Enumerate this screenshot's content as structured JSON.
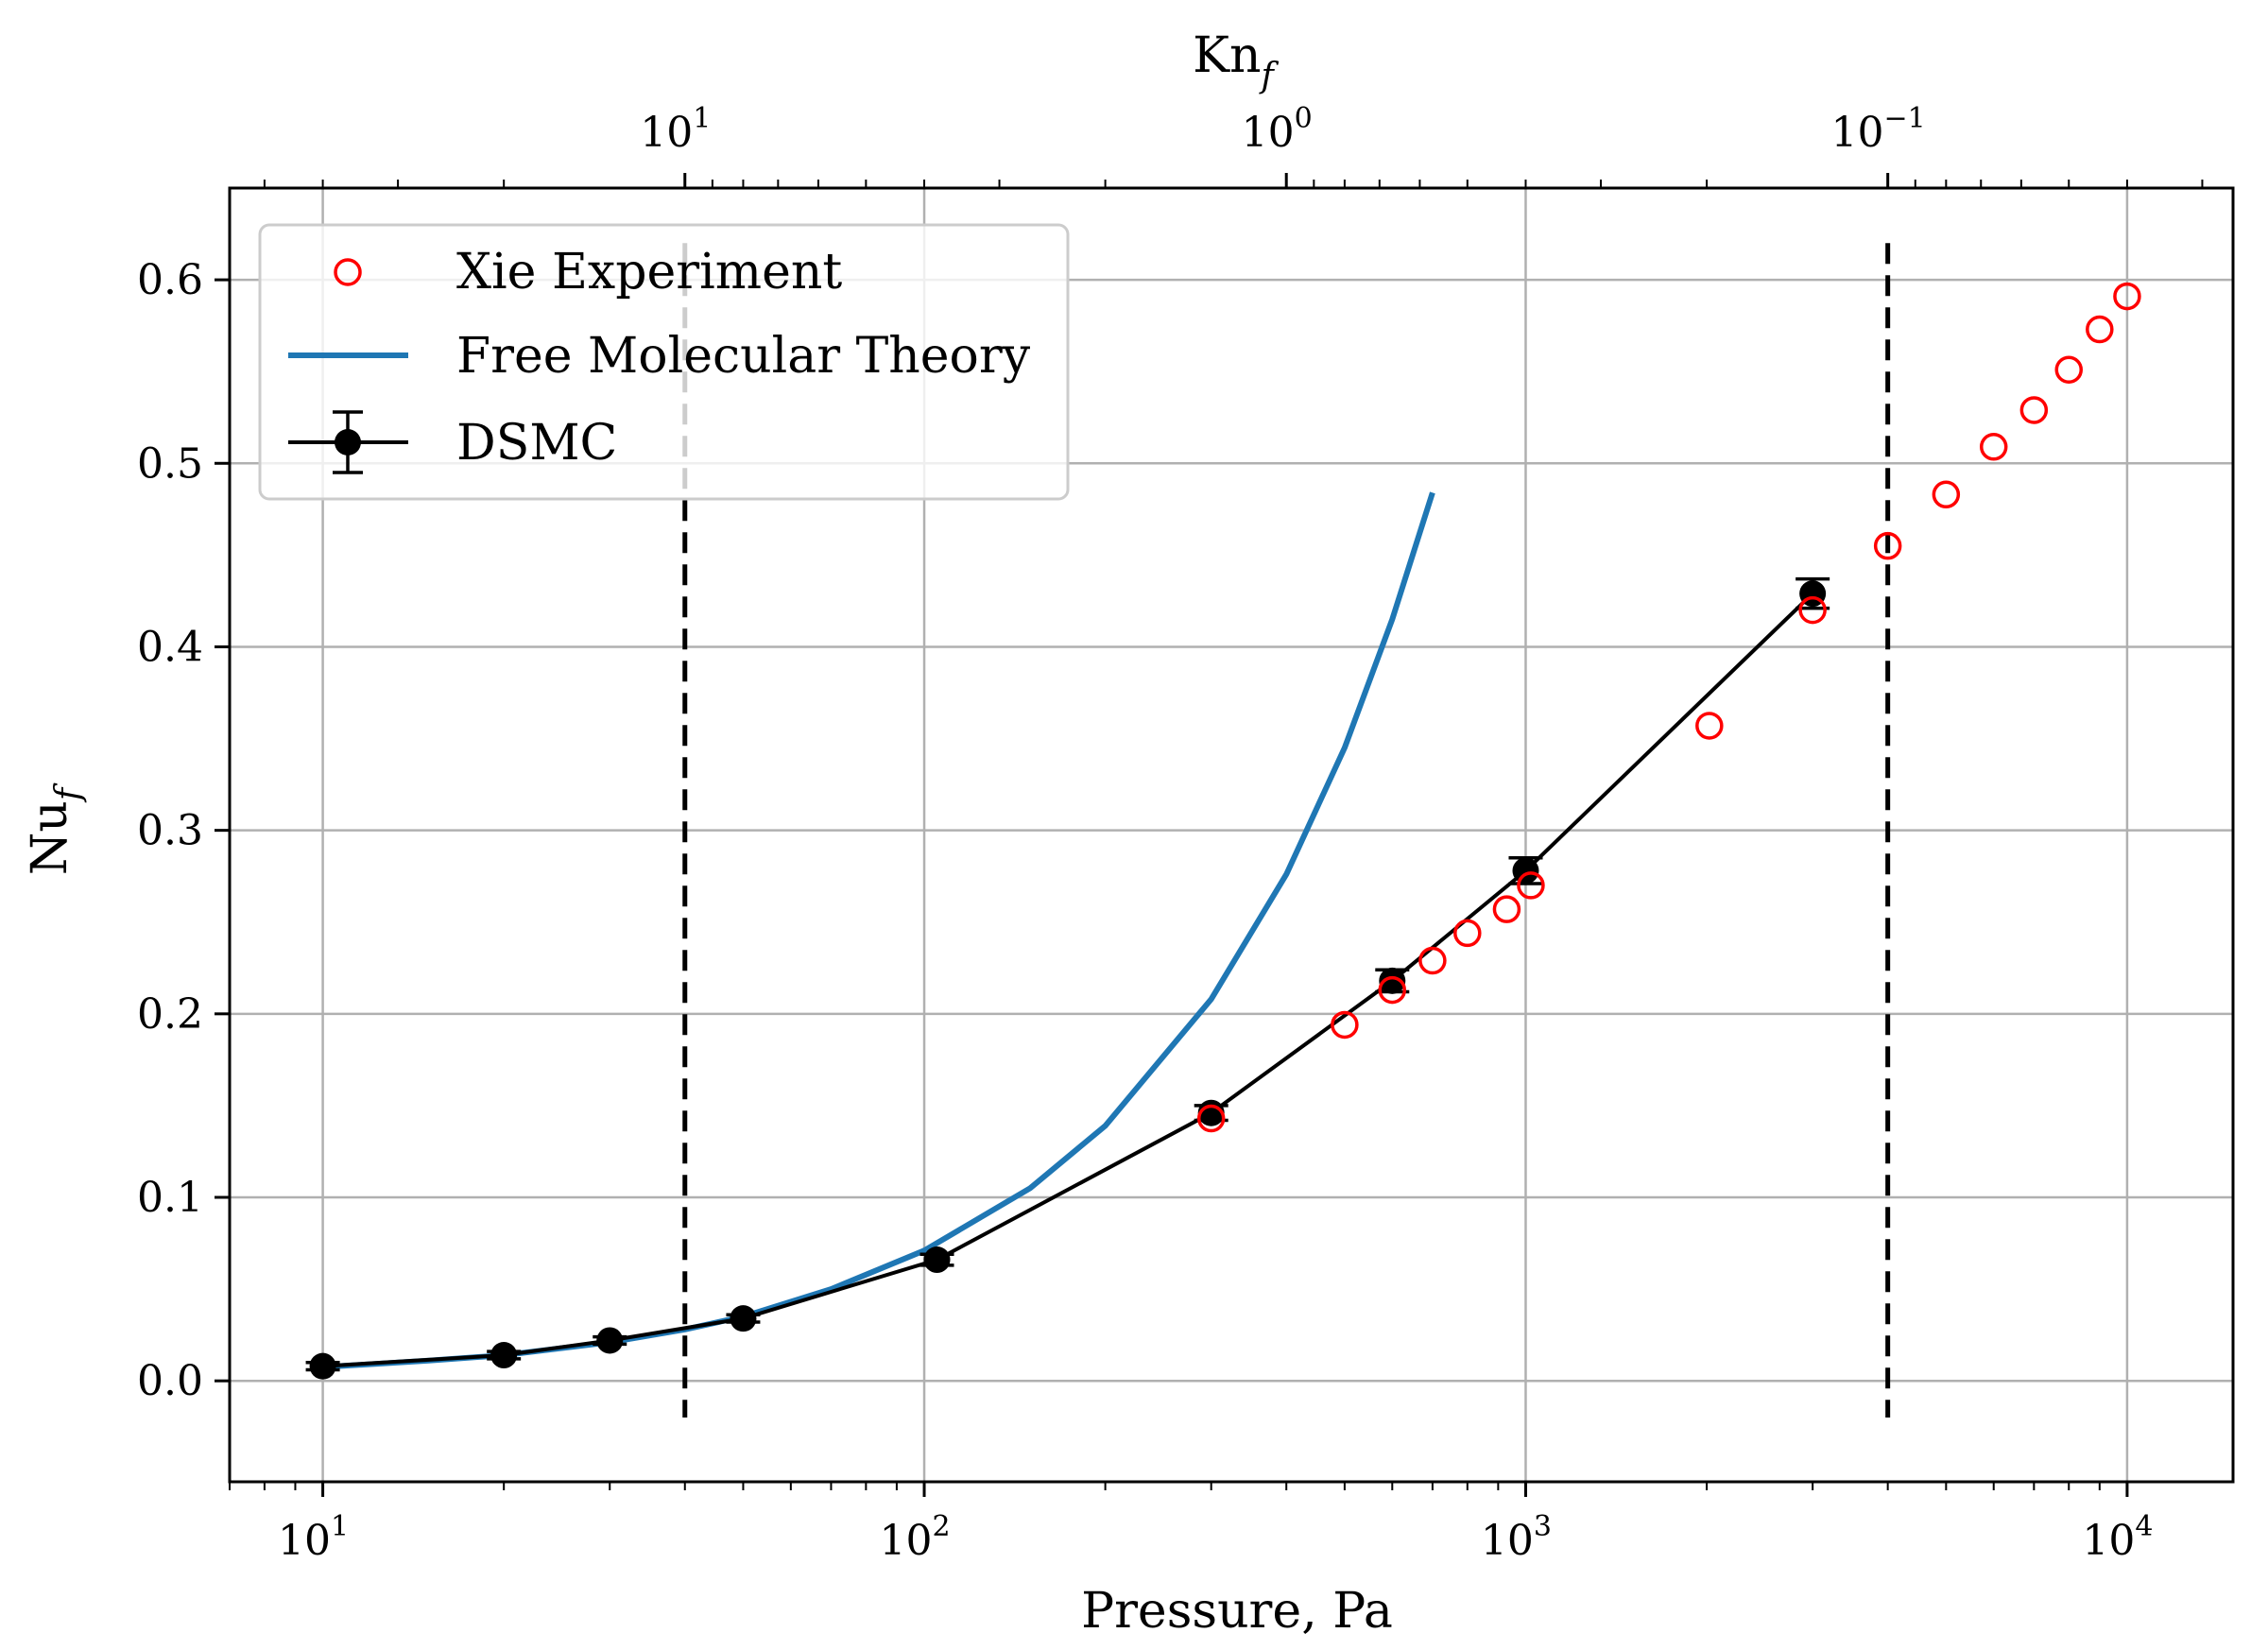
{
  "chart_data": {
    "type": "scatter",
    "title": "",
    "xlabel": "Pressure, Pa",
    "ylabel": "Nu",
    "ylabel_sub": "f",
    "top_xlabel": "Kn",
    "top_xlabel_sub": "f",
    "xscale": "log",
    "xlim": [
      7,
      15000
    ],
    "ylim": [
      -0.055,
      0.65
    ],
    "grid": true,
    "legend_position": "top-left",
    "yticks": [
      0.0,
      0.1,
      0.2,
      0.3,
      0.4,
      0.5,
      0.6
    ],
    "ytick_labels": [
      "0.0",
      "0.1",
      "0.2",
      "0.3",
      "0.4",
      "0.5",
      "0.6"
    ],
    "xticks": [
      {
        "value": 10,
        "base": "10",
        "exp": "1"
      },
      {
        "value": 100,
        "base": "10",
        "exp": "2"
      },
      {
        "value": 1000,
        "base": "10",
        "exp": "3"
      },
      {
        "value": 10000,
        "base": "10",
        "exp": "4"
      }
    ],
    "top_xticks": [
      {
        "pressure": 40,
        "base": "10",
        "exp": "1"
      },
      {
        "pressure": 400,
        "base": "10",
        "exp": "0"
      },
      {
        "pressure": 4000,
        "base": "10",
        "exp": "−1"
      }
    ],
    "vlines": [
      40,
      4000
    ],
    "vline_range": [
      -0.02,
      0.62
    ],
    "series": [
      {
        "name": "Xie Experiment",
        "kind": "marker",
        "color": "#ff0000",
        "x": [
          300,
          500,
          600,
          700,
          800,
          930,
          1020,
          2020,
          3000,
          4000,
          5000,
          6000,
          7000,
          8000,
          9000,
          10000
        ],
        "y": [
          0.143,
          0.194,
          0.213,
          0.229,
          0.244,
          0.257,
          0.27,
          0.357,
          0.42,
          0.455,
          0.483,
          0.509,
          0.529,
          0.551,
          0.573,
          0.591
        ]
      },
      {
        "name": "Free Molecular Theory",
        "kind": "line",
        "color": "#1f77b4",
        "x": [
          10,
          15,
          20,
          30,
          40,
          50,
          70,
          100,
          150,
          200,
          300,
          400,
          500,
          600,
          700
        ],
        "y": [
          0.0075,
          0.011,
          0.014,
          0.021,
          0.028,
          0.035,
          0.05,
          0.071,
          0.105,
          0.139,
          0.208,
          0.276,
          0.345,
          0.415,
          0.484
        ]
      },
      {
        "name": "DSMC",
        "kind": "errorbar",
        "color": "#000000",
        "x": [
          10,
          20,
          30,
          50,
          105,
          300,
          600,
          1000,
          3000
        ],
        "y": [
          0.008,
          0.014,
          0.022,
          0.034,
          0.066,
          0.146,
          0.218,
          0.278,
          0.429
        ],
        "yerr": [
          0.002,
          0.002,
          0.002,
          0.002,
          0.003,
          0.004,
          0.006,
          0.007,
          0.008
        ]
      }
    ]
  }
}
